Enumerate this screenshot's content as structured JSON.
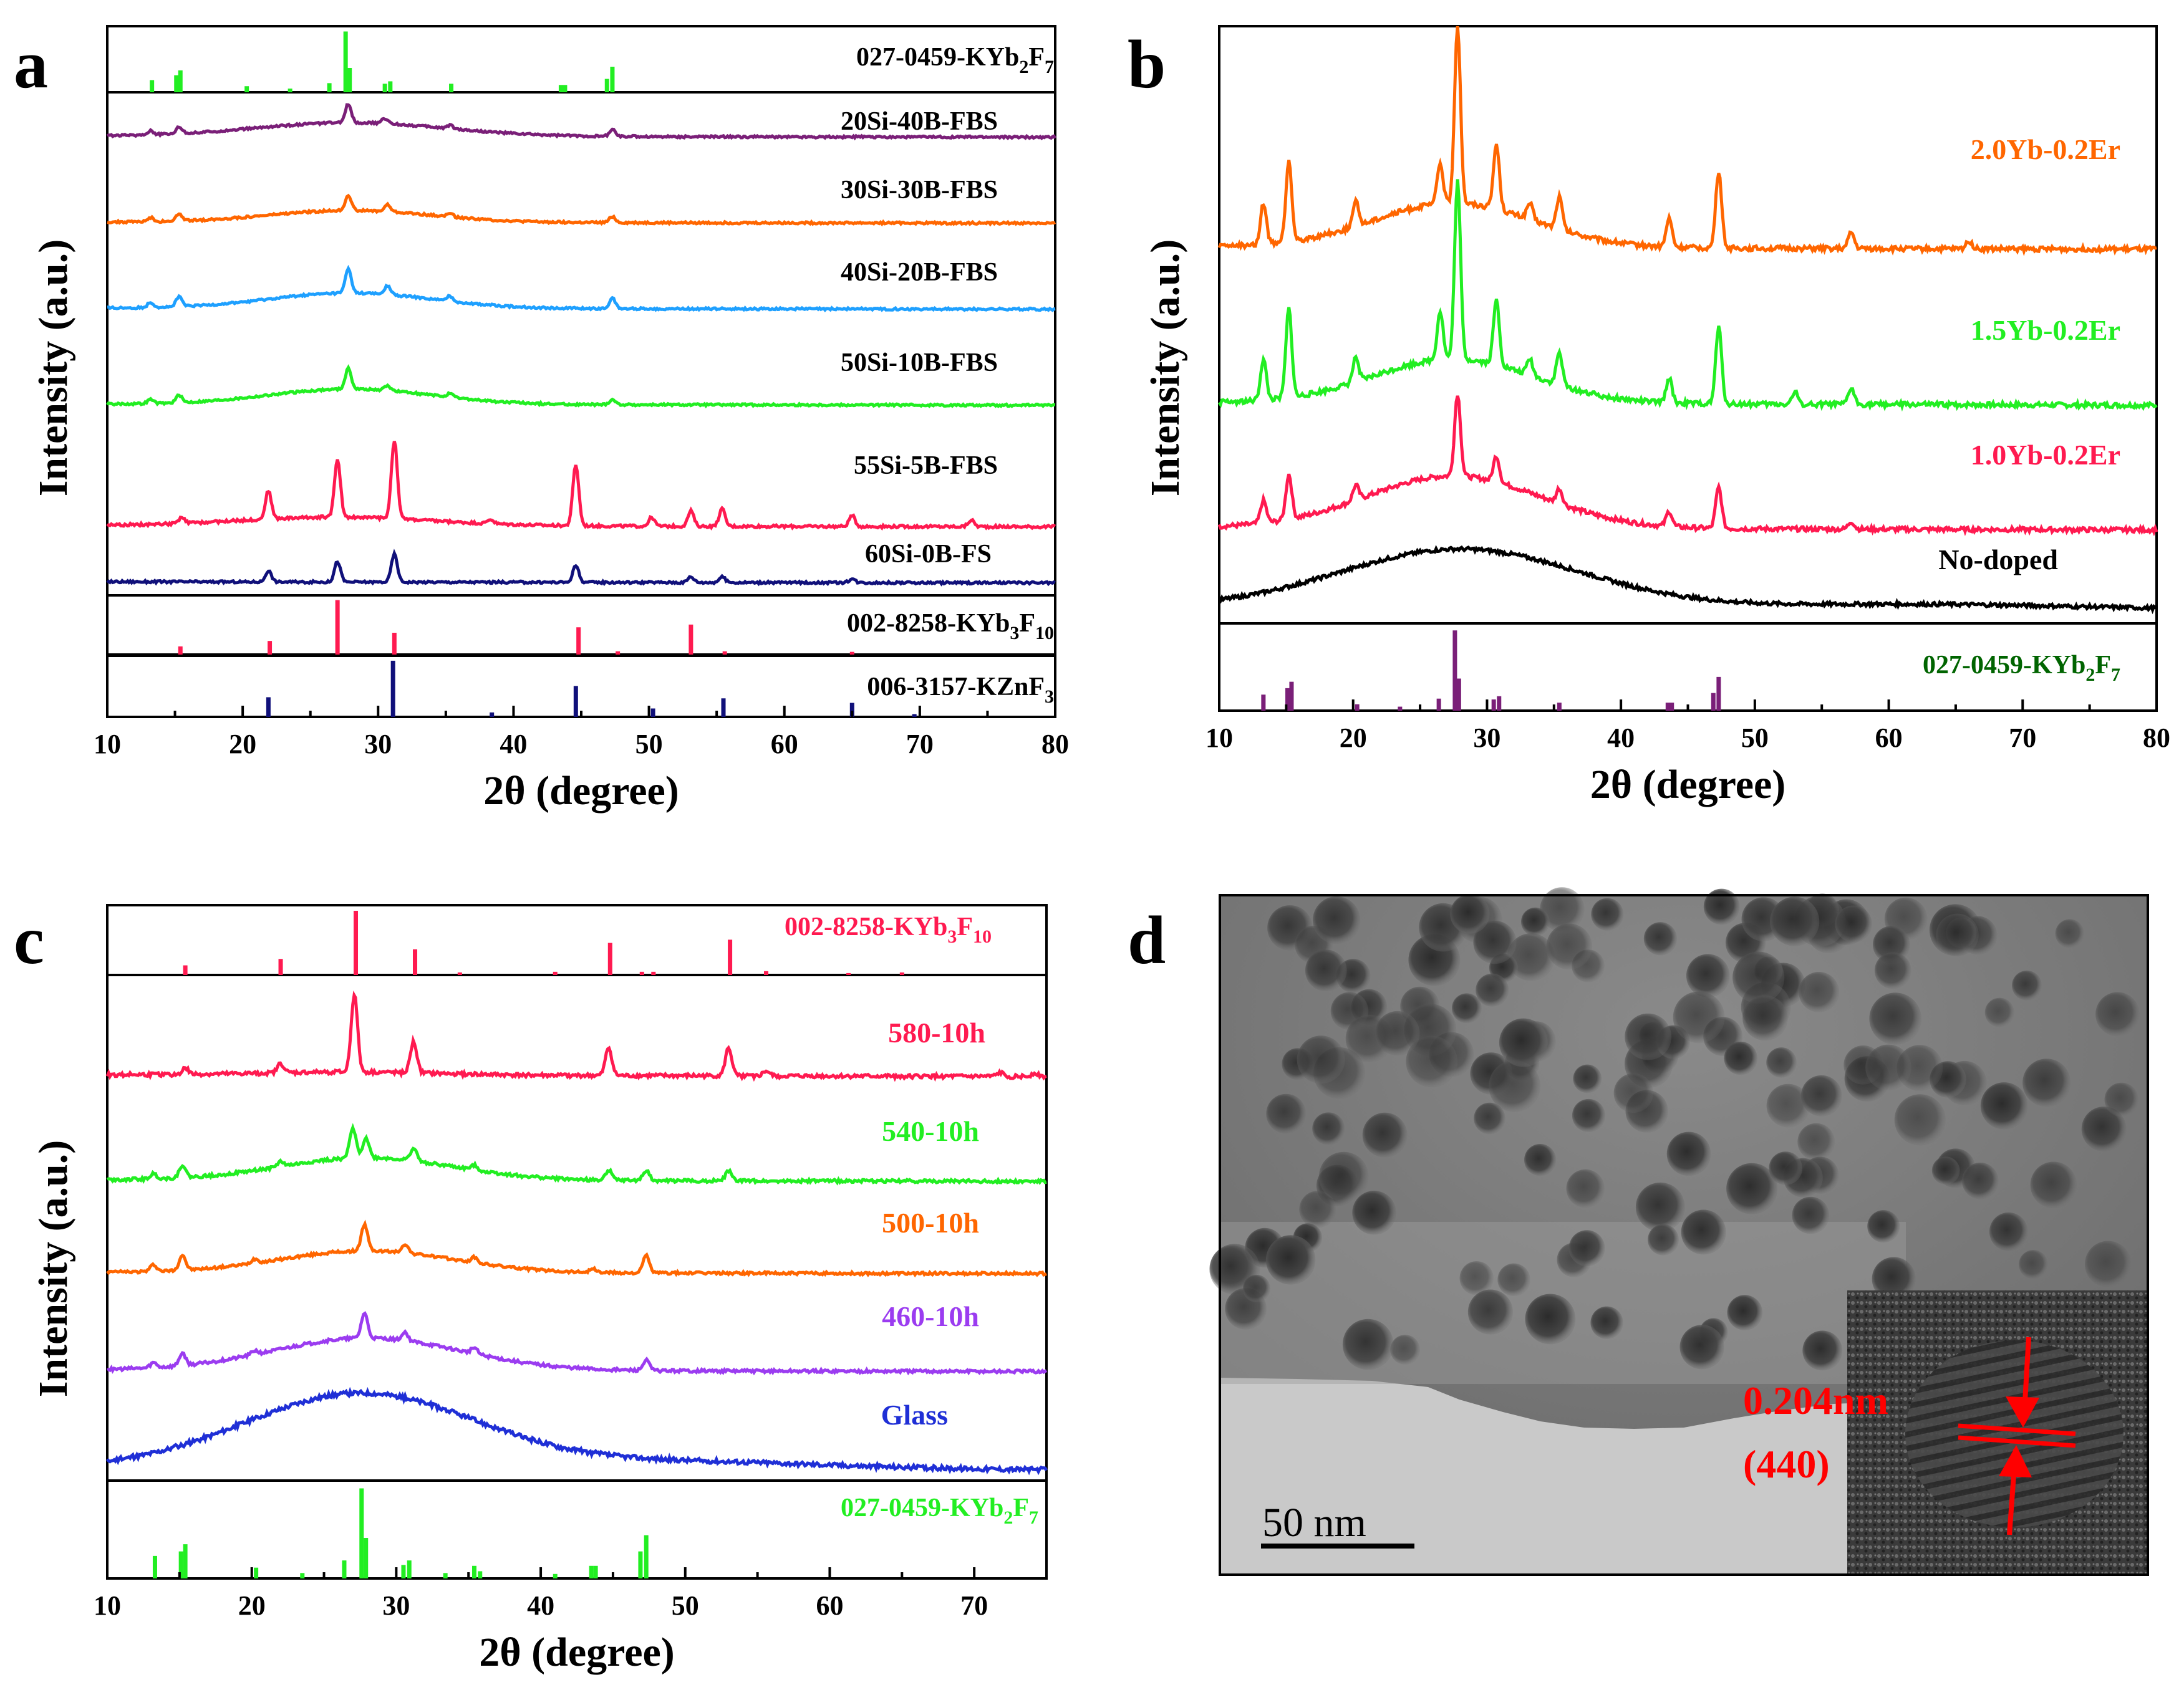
{
  "colors": {
    "green": "#22ee22",
    "purple": "#7a1f78",
    "orange": "#ff6600",
    "cyan": "#1ea0ff",
    "red": "#ff1a50",
    "navy": "#10107a",
    "black": "#000000",
    "darkgreen": "#006400",
    "violet": "#9b3cf0",
    "blue": "#1f2fd6",
    "redtext": "#ff0000"
  },
  "chart_data": [
    {
      "panel": "a",
      "type": "line",
      "title": "",
      "xlabel": "2θ (degree)",
      "ylabel": "Intensity (a.u.)",
      "xlim": [
        10,
        80
      ],
      "xticks": [
        10,
        20,
        30,
        40,
        50,
        60,
        70,
        80
      ],
      "series": [
        {
          "name": "20Si-40B-FBS",
          "color": "purple",
          "bumps": [
            [
              28,
              0.4,
              7
            ]
          ],
          "peaks": [
            [
              13.2,
              0.12
            ],
            [
              15.3,
              0.2
            ],
            [
              27.8,
              0.55
            ],
            [
              30.5,
              0.15
            ],
            [
              35.3,
              0.1
            ],
            [
              47.3,
              0.2
            ]
          ]
        },
        {
          "name": "30Si-30B-FBS",
          "color": "orange",
          "bumps": [
            [
              28,
              0.35,
              6
            ]
          ],
          "peaks": [
            [
              13.2,
              0.12
            ],
            [
              15.3,
              0.2
            ],
            [
              27.8,
              0.45
            ],
            [
              30.7,
              0.2
            ],
            [
              35.3,
              0.1
            ],
            [
              47.3,
              0.18
            ]
          ]
        },
        {
          "name": "40Si-20B-FBS",
          "color": "cyan",
          "bumps": [
            [
              28,
              0.45,
              6
            ]
          ],
          "peaks": [
            [
              13.2,
              0.15
            ],
            [
              15.3,
              0.3
            ],
            [
              27.8,
              0.7
            ],
            [
              30.7,
              0.25
            ],
            [
              35.3,
              0.15
            ],
            [
              47.3,
              0.3
            ]
          ]
        },
        {
          "name": "50Si-10B-FBS",
          "color": "green",
          "bumps": [
            [
              28,
              0.45,
              6
            ]
          ],
          "peaks": [
            [
              13.2,
              0.12
            ],
            [
              15.3,
              0.22
            ],
            [
              27.8,
              0.6
            ],
            [
              30.7,
              0.15
            ],
            [
              35.3,
              0.1
            ],
            [
              47.3,
              0.15
            ]
          ]
        },
        {
          "name": "55Si-5B-FBS",
          "color": "red",
          "bumps": [
            [
              27,
              0.2,
              7
            ]
          ],
          "peaks": [
            [
              15.5,
              0.12
            ],
            [
              21.9,
              0.65
            ],
            [
              27,
              1.3
            ],
            [
              31.2,
              1.8
            ],
            [
              38.3,
              0.1
            ],
            [
              44.6,
              1.4
            ],
            [
              50.2,
              0.2
            ],
            [
              53.1,
              0.35
            ],
            [
              55.4,
              0.4
            ],
            [
              65,
              0.25
            ],
            [
              73.8,
              0.15
            ]
          ]
        },
        {
          "name": "60Si-0B-FS",
          "color": "navy",
          "bumps": [],
          "peaks": [
            [
              21.9,
              0.3
            ],
            [
              27,
              0.55
            ],
            [
              31.2,
              0.75
            ],
            [
              44.6,
              0.45
            ],
            [
              53.1,
              0.15
            ],
            [
              55.4,
              0.15
            ],
            [
              65,
              0.1
            ]
          ]
        }
      ],
      "references": [
        {
          "name": "027-0459-KYb2F7",
          "label_main": "027-0459-KYb",
          "sub1": "2",
          "mid": "F",
          "sub2": "7",
          "color": "green",
          "lines": [
            [
              13.3,
              0.2
            ],
            [
              15.1,
              0.28
            ],
            [
              15.4,
              0.36
            ],
            [
              20.3,
              0.1
            ],
            [
              23.5,
              0.06
            ],
            [
              26.4,
              0.15
            ],
            [
              27.6,
              1
            ],
            [
              27.9,
              0.4
            ],
            [
              30.5,
              0.14
            ],
            [
              30.9,
              0.18
            ],
            [
              35.4,
              0.14
            ],
            [
              43.5,
              0.12
            ],
            [
              43.8,
              0.12
            ],
            [
              46.9,
              0.22
            ],
            [
              47.3,
              0.42
            ]
          ]
        },
        {
          "name": "002-8258-KYb3F10",
          "label_main": "002-8258-KYb",
          "sub1": "3",
          "mid": "F",
          "sub2": "10",
          "color": "red",
          "lines": [
            [
              15.4,
              0.15
            ],
            [
              22,
              0.25
            ],
            [
              27,
              1
            ],
            [
              31.2,
              0.4
            ],
            [
              44.8,
              0.5
            ],
            [
              47.7,
              0.06
            ],
            [
              53.1,
              0.55
            ],
            [
              55.6,
              0.06
            ],
            [
              65,
              0.05
            ]
          ]
        },
        {
          "name": "006-3157-KZnF3",
          "label_main": "006-3157-KZnF",
          "sub1": "3",
          "mid": "",
          "sub2": "",
          "color": "navy",
          "lines": [
            [
              21.9,
              0.35
            ],
            [
              31.1,
              1
            ],
            [
              38.4,
              0.08
            ],
            [
              44.6,
              0.55
            ],
            [
              50.3,
              0.15
            ],
            [
              55.5,
              0.33
            ],
            [
              65,
              0.25
            ],
            [
              69.6,
              0.05
            ]
          ]
        }
      ]
    },
    {
      "panel": "b",
      "type": "line",
      "title": "",
      "xlabel": "2θ (degree)",
      "ylabel": "Intensity (a.u.)",
      "xlim": [
        10,
        80
      ],
      "xticks": [
        10,
        20,
        30,
        40,
        50,
        60,
        70,
        80
      ],
      "series": [
        {
          "name": "2.0Yb-0.2Er",
          "color": "orange",
          "bumps": [
            [
              27.5,
              0.55,
              6
            ]
          ],
          "peaks": [
            [
              13.3,
              0.5
            ],
            [
              15.2,
              1
            ],
            [
              20.2,
              0.3
            ],
            [
              26.5,
              0.5
            ],
            [
              27.8,
              2.2
            ],
            [
              30.7,
              0.8
            ],
            [
              33.2,
              0.2
            ],
            [
              35.4,
              0.4
            ],
            [
              43.6,
              0.35
            ],
            [
              47.3,
              0.95
            ],
            [
              57.2,
              0.2
            ],
            [
              66,
              0.1
            ]
          ]
        },
        {
          "name": "1.5Yb-0.2Er",
          "color": "green",
          "bumps": [
            [
              27.5,
              0.55,
              6
            ]
          ],
          "peaks": [
            [
              13.3,
              0.5
            ],
            [
              15.2,
              1.1
            ],
            [
              20.2,
              0.3
            ],
            [
              26.5,
              0.6
            ],
            [
              27.8,
              2.2
            ],
            [
              30.7,
              0.8
            ],
            [
              33.2,
              0.2
            ],
            [
              35.4,
              0.4
            ],
            [
              43.6,
              0.3
            ],
            [
              47.3,
              0.95
            ],
            [
              53,
              0.15
            ],
            [
              57.2,
              0.2
            ]
          ]
        },
        {
          "name": "1.0Yb-0.2Er",
          "color": "red",
          "bumps": [
            [
              27.5,
              0.7,
              6.5
            ]
          ],
          "peaks": [
            [
              13.3,
              0.3
            ],
            [
              15.2,
              0.6
            ],
            [
              20.2,
              0.2
            ],
            [
              27.8,
              1.1
            ],
            [
              30.7,
              0.35
            ],
            [
              35.4,
              0.2
            ],
            [
              43.6,
              0.2
            ],
            [
              47.3,
              0.55
            ],
            [
              57.2,
              0.1
            ]
          ]
        },
        {
          "name": "No-doped",
          "color": "black",
          "bumps": [
            [
              28,
              0.95,
              9
            ],
            [
              62,
              0.08,
              12
            ]
          ],
          "peaks": []
        }
      ],
      "references": [
        {
          "name": "027-0459-KYb2F7",
          "label_main": "027-0459-KYb",
          "sub1": "2",
          "mid": "F",
          "sub2": "7",
          "color": "purple",
          "lines": [
            [
              13.3,
              0.2
            ],
            [
              15.1,
              0.28
            ],
            [
              15.4,
              0.36
            ],
            [
              20.3,
              0.08
            ],
            [
              23.5,
              0.05
            ],
            [
              26.4,
              0.15
            ],
            [
              27.6,
              1
            ],
            [
              27.9,
              0.4
            ],
            [
              30.5,
              0.14
            ],
            [
              30.9,
              0.18
            ],
            [
              35.4,
              0.1
            ],
            [
              43.5,
              0.1
            ],
            [
              43.8,
              0.1
            ],
            [
              46.9,
              0.22
            ],
            [
              47.3,
              0.42
            ]
          ]
        }
      ]
    },
    {
      "panel": "c",
      "type": "line",
      "title": "",
      "xlabel": "2θ (degree)",
      "ylabel": "Intensity (a.u.)",
      "xlim": [
        10,
        75
      ],
      "xticks": [
        10,
        20,
        30,
        40,
        50,
        60,
        70
      ],
      "series": [
        {
          "name": "580-10h",
          "color": "red",
          "bumps": [
            [
              27,
              0.05,
              6
            ]
          ],
          "peaks": [
            [
              15.4,
              0.1
            ],
            [
              22,
              0.15
            ],
            [
              27.1,
              1.25
            ],
            [
              31.2,
              0.5
            ],
            [
              44.7,
              0.45
            ],
            [
              53,
              0.45
            ],
            [
              55.6,
              0.08
            ],
            [
              71.8,
              0.06
            ],
            [
              74.2,
              0.06
            ]
          ]
        },
        {
          "name": "540-10h",
          "color": "green",
          "bumps": [
            [
              28,
              0.45,
              6
            ]
          ],
          "peaks": [
            [
              13.2,
              0.1
            ],
            [
              15.2,
              0.25
            ],
            [
              22,
              0.1
            ],
            [
              27,
              0.6
            ],
            [
              27.9,
              0.4
            ],
            [
              31.2,
              0.25
            ],
            [
              35.4,
              0.1
            ],
            [
              44.7,
              0.2
            ],
            [
              47.3,
              0.2
            ],
            [
              53,
              0.2
            ]
          ]
        },
        {
          "name": "500-10h",
          "color": "orange",
          "bumps": [
            [
              28,
              0.5,
              6
            ]
          ],
          "peaks": [
            [
              13.2,
              0.15
            ],
            [
              15.2,
              0.35
            ],
            [
              20.2,
              0.1
            ],
            [
              27.8,
              0.6
            ],
            [
              30.6,
              0.2
            ],
            [
              35.4,
              0.12
            ],
            [
              43.6,
              0.08
            ],
            [
              47.3,
              0.4
            ]
          ]
        },
        {
          "name": "460-10h",
          "color": "violet",
          "bumps": [
            [
              28,
              0.65,
              6.5
            ]
          ],
          "peaks": [
            [
              13.2,
              0.1
            ],
            [
              15.2,
              0.25
            ],
            [
              20.2,
              0.08
            ],
            [
              27.8,
              0.5
            ],
            [
              30.6,
              0.15
            ],
            [
              35.4,
              0.12
            ],
            [
              47.3,
              0.2
            ]
          ]
        },
        {
          "name": "Glass",
          "color": "blue",
          "bumps": [
            [
              27.5,
              1,
              8
            ],
            [
              50,
              0.1,
              10
            ]
          ],
          "peaks": []
        }
      ],
      "references": [
        {
          "name": "002-8258-KYb3F10",
          "label_main": "002-8258-KYb",
          "sub1": "3",
          "mid": "F",
          "sub2": "10",
          "color": "red",
          "lines": [
            [
              15.4,
              0.15
            ],
            [
              22,
              0.25
            ],
            [
              27.2,
              1
            ],
            [
              31.3,
              0.4
            ],
            [
              34.4,
              0.04
            ],
            [
              41,
              0.05
            ],
            [
              44.8,
              0.5
            ],
            [
              47,
              0.05
            ],
            [
              47.8,
              0.05
            ],
            [
              53.1,
              0.55
            ],
            [
              55.6,
              0.06
            ],
            [
              61.3,
              0.03
            ],
            [
              65,
              0.04
            ]
          ]
        },
        {
          "name": "027-0459-KYb2F7",
          "label_main": "027-0459-KYb",
          "sub1": "2",
          "mid": "F",
          "sub2": "7",
          "color": "green",
          "lines": [
            [
              13.3,
              0.25
            ],
            [
              15.1,
              0.3
            ],
            [
              15.4,
              0.38
            ],
            [
              20.3,
              0.12
            ],
            [
              23.5,
              0.06
            ],
            [
              26.4,
              0.2
            ],
            [
              27.6,
              1
            ],
            [
              27.9,
              0.45
            ],
            [
              30.5,
              0.15
            ],
            [
              30.9,
              0.2
            ],
            [
              33.4,
              0.06
            ],
            [
              35.4,
              0.14
            ],
            [
              35.8,
              0.08
            ],
            [
              41,
              0.05
            ],
            [
              43.5,
              0.14
            ],
            [
              43.8,
              0.14
            ],
            [
              46.9,
              0.3
            ],
            [
              47.3,
              0.48
            ]
          ]
        }
      ]
    }
  ],
  "panels": {
    "a": {
      "letter": "a",
      "xlabel": "2θ (degree)",
      "ylabel": "Intensity (a.u.)"
    },
    "b": {
      "letter": "b",
      "xlabel": "2θ (degree)",
      "ylabel": "Intensity (a.u.)"
    },
    "c": {
      "letter": "c",
      "xlabel": "2θ (degree)",
      "ylabel": "Intensity (a.u.)"
    },
    "d": {
      "letter": "d",
      "scale_bar": "50 nm",
      "spacing": "0.204nm",
      "plane": "(440)"
    }
  }
}
